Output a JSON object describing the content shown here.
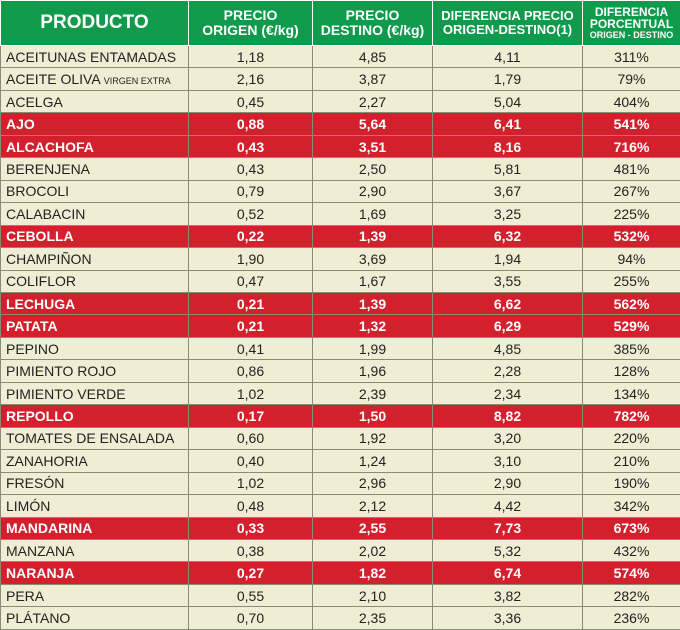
{
  "header": {
    "producto": "PRODUCTO",
    "origen_l1": "PRECIO",
    "origen_l2": "ORIGEN (€/kg)",
    "destino_l1": "PRECIO",
    "destino_l2": "DESTINO (€/kg)",
    "dif_l1": "DIFERENCIA PRECIO",
    "dif_l2": "ORIGEN-DESTINO(1)",
    "pct_l1": "DIFERENCIA",
    "pct_l2": "PORCENTUAL",
    "pct_l3": "ORIGEN - DESTINO"
  },
  "colors": {
    "header": "#109a4b",
    "row": "#efedd3",
    "highlight": "#d2202d"
  },
  "rows": [
    {
      "name": "ACEITUNAS ENTAMADAS",
      "sub": "",
      "origen": "1,18",
      "destino": "4,85",
      "dif": "4,11",
      "pct": "311%",
      "highlight": false
    },
    {
      "name": "ACEITE OLIVA ",
      "sub": "VIRGEN EXTRA",
      "origen": "2,16",
      "destino": "3,87",
      "dif": "1,79",
      "pct": "79%",
      "highlight": false
    },
    {
      "name": "ACELGA",
      "sub": "",
      "origen": "0,45",
      "destino": "2,27",
      "dif": "5,04",
      "pct": "404%",
      "highlight": false
    },
    {
      "name": "AJO",
      "sub": "",
      "origen": "0,88",
      "destino": "5,64",
      "dif": "6,41",
      "pct": "541%",
      "highlight": true
    },
    {
      "name": "ALCACHOFA",
      "sub": "",
      "origen": "0,43",
      "destino": "3,51",
      "dif": "8,16",
      "pct": "716%",
      "highlight": true
    },
    {
      "name": "BERENJENA",
      "sub": "",
      "origen": "0,43",
      "destino": "2,50",
      "dif": "5,81",
      "pct": "481%",
      "highlight": false
    },
    {
      "name": "BROCOLI",
      "sub": "",
      "origen": "0,79",
      "destino": "2,90",
      "dif": "3,67",
      "pct": "267%",
      "highlight": false
    },
    {
      "name": "CALABACIN",
      "sub": "",
      "origen": "0,52",
      "destino": "1,69",
      "dif": "3,25",
      "pct": "225%",
      "highlight": false
    },
    {
      "name": "CEBOLLA",
      "sub": "",
      "origen": "0,22",
      "destino": "1,39",
      "dif": "6,32",
      "pct": "532%",
      "highlight": true
    },
    {
      "name": "CHAMPIÑON",
      "sub": "",
      "origen": "1,90",
      "destino": "3,69",
      "dif": "1,94",
      "pct": "94%",
      "highlight": false
    },
    {
      "name": "COLIFLOR",
      "sub": "",
      "origen": "0,47",
      "destino": "1,67",
      "dif": "3,55",
      "pct": "255%",
      "highlight": false
    },
    {
      "name": "LECHUGA",
      "sub": "",
      "origen": "0,21",
      "destino": "1,39",
      "dif": "6,62",
      "pct": "562%",
      "highlight": true
    },
    {
      "name": "PATATA",
      "sub": "",
      "origen": "0,21",
      "destino": "1,32",
      "dif": "6,29",
      "pct": "529%",
      "highlight": true
    },
    {
      "name": "PEPINO",
      "sub": "",
      "origen": "0,41",
      "destino": "1,99",
      "dif": "4,85",
      "pct": "385%",
      "highlight": false
    },
    {
      "name": "PIMIENTO ROJO",
      "sub": "",
      "origen": "0,86",
      "destino": "1,96",
      "dif": "2,28",
      "pct": "128%",
      "highlight": false
    },
    {
      "name": "PIMIENTO VERDE",
      "sub": "",
      "origen": "1,02",
      "destino": "2,39",
      "dif": "2,34",
      "pct": "134%",
      "highlight": false
    },
    {
      "name": "REPOLLO",
      "sub": "",
      "origen": "0,17",
      "destino": "1,50",
      "dif": "8,82",
      "pct": "782%",
      "highlight": true
    },
    {
      "name": "TOMATES DE ENSALADA",
      "sub": "",
      "origen": "0,60",
      "destino": "1,92",
      "dif": "3,20",
      "pct": "220%",
      "highlight": false
    },
    {
      "name": "ZANAHORIA",
      "sub": "",
      "origen": "0,40",
      "destino": "1,24",
      "dif": "3,10",
      "pct": "210%",
      "highlight": false
    },
    {
      "name": "FRESÓN",
      "sub": "",
      "origen": "1,02",
      "destino": "2,96",
      "dif": "2,90",
      "pct": "190%",
      "highlight": false
    },
    {
      "name": "LIMÓN",
      "sub": "",
      "origen": "0,48",
      "destino": "2,12",
      "dif": "4,42",
      "pct": "342%",
      "highlight": false
    },
    {
      "name": "MANDARINA",
      "sub": "",
      "origen": "0,33",
      "destino": "2,55",
      "dif": "7,73",
      "pct": "673%",
      "highlight": true
    },
    {
      "name": "MANZANA",
      "sub": "",
      "origen": "0,38",
      "destino": "2,02",
      "dif": "5,32",
      "pct": "432%",
      "highlight": false
    },
    {
      "name": "NARANJA",
      "sub": "",
      "origen": "0,27",
      "destino": "1,82",
      "dif": "6,74",
      "pct": "574%",
      "highlight": true
    },
    {
      "name": "PERA",
      "sub": "",
      "origen": "0,55",
      "destino": "2,10",
      "dif": "3,82",
      "pct": "282%",
      "highlight": false
    },
    {
      "name": "PLÁTANO",
      "sub": "",
      "origen": "0,70",
      "destino": "2,35",
      "dif": "3,36",
      "pct": "236%",
      "highlight": false
    }
  ]
}
